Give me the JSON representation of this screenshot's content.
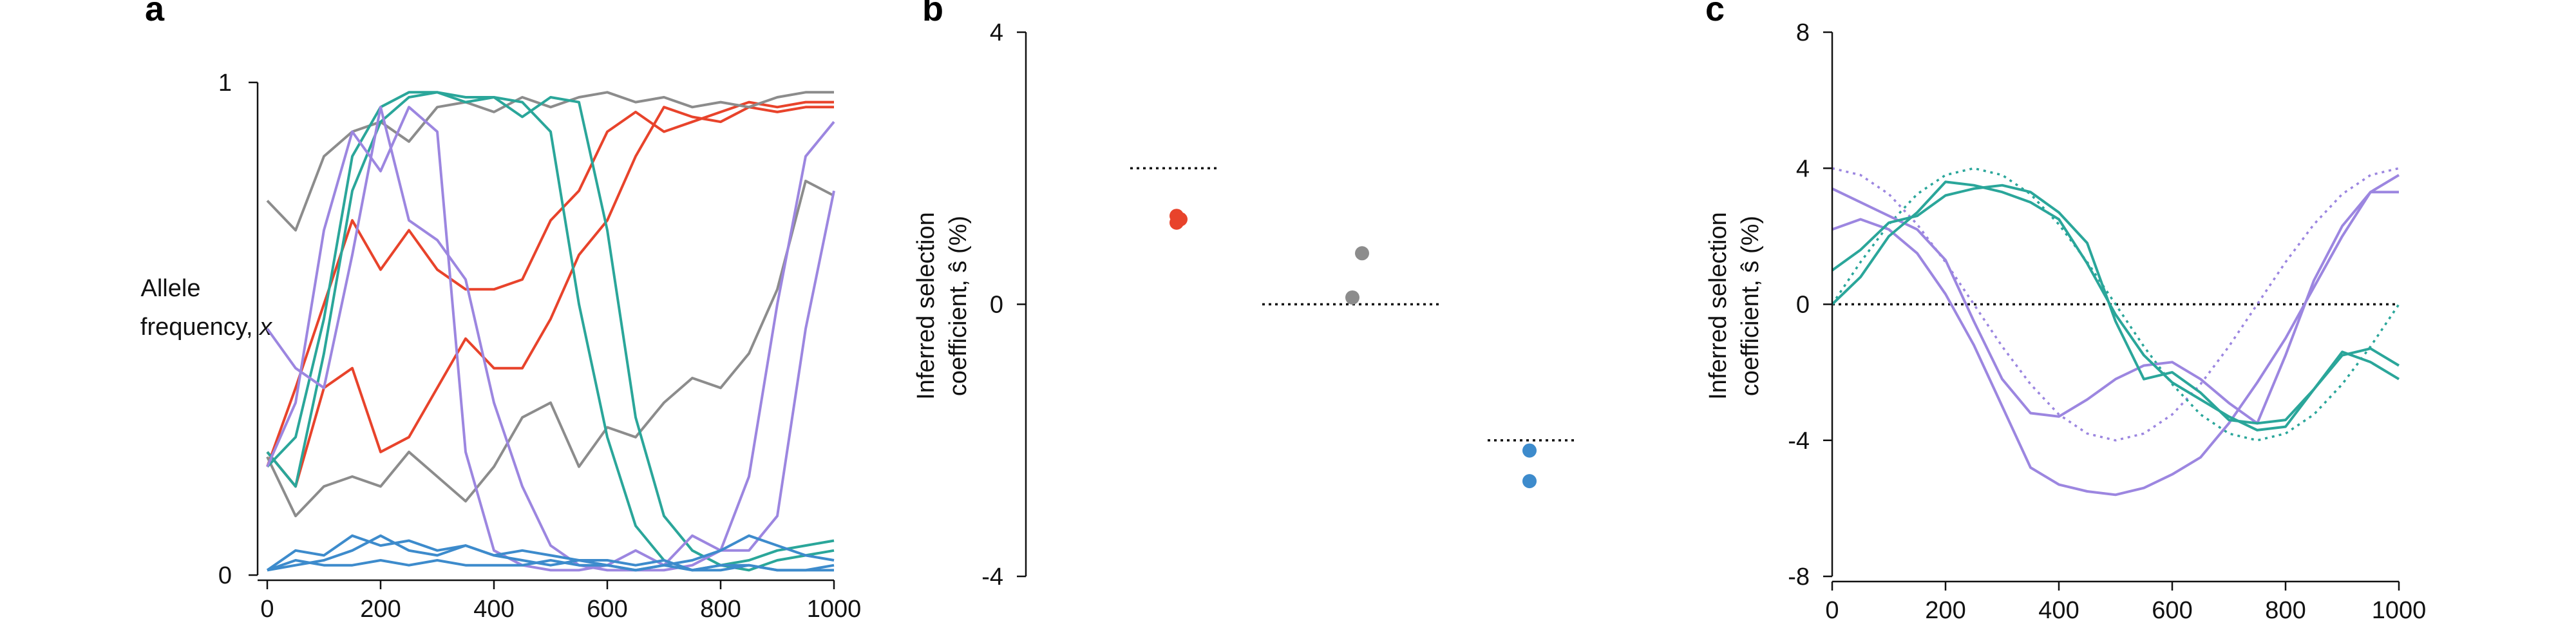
{
  "panels": {
    "a": {
      "letter": "a",
      "ylabel_line1": "Allele",
      "ylabel_line2_prefix": "frequency, ",
      "ylabel_var": "x"
    },
    "b": {
      "letter": "b",
      "ylabel_line1": "Inferred selection",
      "ylabel_line2": "coefficient, ŝ (%)"
    },
    "c": {
      "letter": "c",
      "ylabel_line1": "Inferred selection",
      "ylabel_line2": "coefficient, ŝ (%)"
    }
  },
  "colors": {
    "red": "#e8432b",
    "gray": "#8c8c8c",
    "teal": "#2aa69a",
    "purple": "#9c86e0",
    "blue": "#3d8bcc",
    "dotted": "#111111"
  },
  "chart_data": [
    {
      "id": "a",
      "type": "line",
      "xlim": [
        0,
        1000
      ],
      "ylim": [
        0,
        1
      ],
      "xticks": [
        "0",
        "200",
        "400",
        "600",
        "800",
        "1000"
      ],
      "yticks": [
        "0",
        "1"
      ],
      "ylabel": "Allele frequency, x",
      "series": [
        {
          "color": "red",
          "x": [
            0,
            50,
            100,
            150,
            200,
            250,
            300,
            350,
            400,
            450,
            500,
            550,
            600,
            650,
            700,
            750,
            800,
            850,
            900,
            950,
            1000
          ],
          "y": [
            0.25,
            0.18,
            0.38,
            0.42,
            0.25,
            0.28,
            0.38,
            0.48,
            0.42,
            0.42,
            0.52,
            0.65,
            0.72,
            0.85,
            0.95,
            0.93,
            0.92,
            0.95,
            0.94,
            0.95,
            0.95
          ]
        },
        {
          "color": "red",
          "x": [
            0,
            50,
            100,
            150,
            200,
            250,
            300,
            350,
            400,
            450,
            500,
            550,
            600,
            650,
            700,
            750,
            800,
            850,
            900,
            950,
            1000
          ],
          "y": [
            0.22,
            0.38,
            0.55,
            0.72,
            0.62,
            0.7,
            0.62,
            0.58,
            0.58,
            0.6,
            0.72,
            0.78,
            0.9,
            0.94,
            0.9,
            0.92,
            0.94,
            0.96,
            0.95,
            0.96,
            0.96
          ]
        },
        {
          "color": "gray",
          "x": [
            0,
            50,
            100,
            150,
            200,
            250,
            300,
            350,
            400,
            450,
            500,
            550,
            600,
            650,
            700,
            750,
            800,
            850,
            900,
            950,
            1000
          ],
          "y": [
            0.76,
            0.7,
            0.85,
            0.9,
            0.92,
            0.88,
            0.95,
            0.96,
            0.94,
            0.97,
            0.95,
            0.97,
            0.98,
            0.96,
            0.97,
            0.95,
            0.96,
            0.95,
            0.97,
            0.98,
            0.98
          ]
        },
        {
          "color": "gray",
          "x": [
            0,
            50,
            100,
            150,
            200,
            250,
            300,
            350,
            400,
            450,
            500,
            550,
            600,
            650,
            700,
            750,
            800,
            850,
            900,
            950,
            1000
          ],
          "y": [
            0.24,
            0.12,
            0.18,
            0.2,
            0.18,
            0.25,
            0.2,
            0.15,
            0.22,
            0.32,
            0.35,
            0.22,
            0.3,
            0.28,
            0.35,
            0.4,
            0.38,
            0.45,
            0.58,
            0.8,
            0.77
          ]
        },
        {
          "color": "teal",
          "x": [
            0,
            50,
            100,
            150,
            200,
            250,
            300,
            350,
            400,
            450,
            500,
            550,
            600,
            650,
            700,
            750,
            800,
            850,
            900,
            950,
            1000
          ],
          "y": [
            0.25,
            0.18,
            0.45,
            0.78,
            0.92,
            0.97,
            0.98,
            0.97,
            0.97,
            0.96,
            0.9,
            0.55,
            0.28,
            0.1,
            0.03,
            0.01,
            0.02,
            0.03,
            0.05,
            0.06,
            0.07
          ]
        },
        {
          "color": "teal",
          "x": [
            0,
            50,
            100,
            150,
            200,
            250,
            300,
            350,
            400,
            450,
            500,
            550,
            600,
            650,
            700,
            750,
            800,
            850,
            900,
            950,
            1000
          ],
          "y": [
            0.22,
            0.28,
            0.52,
            0.85,
            0.95,
            0.98,
            0.98,
            0.96,
            0.97,
            0.93,
            0.97,
            0.96,
            0.7,
            0.32,
            0.12,
            0.05,
            0.02,
            0.01,
            0.03,
            0.04,
            0.05
          ]
        },
        {
          "color": "purple",
          "x": [
            0,
            50,
            100,
            150,
            200,
            250,
            300,
            350,
            400,
            450,
            500,
            550,
            600,
            650,
            700,
            750,
            800,
            850,
            900,
            950,
            1000
          ],
          "y": [
            0.5,
            0.42,
            0.38,
            0.65,
            0.95,
            0.72,
            0.68,
            0.6,
            0.35,
            0.18,
            0.06,
            0.02,
            0.01,
            0.01,
            0.01,
            0.02,
            0.05,
            0.2,
            0.55,
            0.85,
            0.92
          ]
        },
        {
          "color": "purple",
          "x": [
            0,
            50,
            100,
            150,
            200,
            250,
            300,
            350,
            400,
            450,
            500,
            550,
            600,
            650,
            700,
            750,
            800,
            850,
            900,
            950,
            1000
          ],
          "y": [
            0.22,
            0.35,
            0.7,
            0.9,
            0.82,
            0.95,
            0.9,
            0.25,
            0.05,
            0.02,
            0.01,
            0.01,
            0.02,
            0.05,
            0.02,
            0.08,
            0.05,
            0.05,
            0.12,
            0.5,
            0.78
          ]
        },
        {
          "color": "blue",
          "x": [
            0,
            50,
            100,
            150,
            200,
            250,
            300,
            350,
            400,
            450,
            500,
            550,
            600,
            650,
            700,
            750,
            800,
            850,
            900,
            950,
            1000
          ],
          "y": [
            0.01,
            0.05,
            0.04,
            0.08,
            0.06,
            0.07,
            0.05,
            0.06,
            0.04,
            0.05,
            0.04,
            0.03,
            0.03,
            0.02,
            0.03,
            0.01,
            0.02,
            0.02,
            0.01,
            0.01,
            0.01
          ]
        },
        {
          "color": "blue",
          "x": [
            0,
            50,
            100,
            150,
            200,
            250,
            300,
            350,
            400,
            450,
            500,
            550,
            600,
            650,
            700,
            750,
            800,
            850,
            900,
            950,
            1000
          ],
          "y": [
            0.01,
            0.02,
            0.03,
            0.05,
            0.08,
            0.05,
            0.04,
            0.06,
            0.04,
            0.03,
            0.02,
            0.03,
            0.02,
            0.01,
            0.02,
            0.01,
            0.01,
            0.02,
            0.01,
            0.01,
            0.02
          ]
        },
        {
          "color": "blue",
          "x": [
            0,
            50,
            100,
            150,
            200,
            250,
            300,
            350,
            400,
            450,
            500,
            550,
            600,
            650,
            700,
            750,
            800,
            850,
            900,
            950,
            1000
          ],
          "y": [
            0.01,
            0.03,
            0.02,
            0.02,
            0.03,
            0.02,
            0.03,
            0.02,
            0.02,
            0.02,
            0.03,
            0.02,
            0.02,
            0.01,
            0.02,
            0.03,
            0.05,
            0.08,
            0.06,
            0.04,
            0.03
          ]
        }
      ]
    },
    {
      "id": "b",
      "type": "scatter",
      "ylim": [
        -4,
        4
      ],
      "yticks": [
        "-4",
        "0",
        "4"
      ],
      "ylabel": "Inferred selection coefficient, ŝ (%)",
      "groups": [
        {
          "color": "red",
          "true_value": 2,
          "points": [
            1.3,
            1.25,
            1.2
          ]
        },
        {
          "color": "gray",
          "true_value": 0,
          "points": [
            0.75,
            0.1
          ]
        },
        {
          "color": "blue",
          "true_value": -2,
          "points": [
            -2.15,
            -2.6
          ]
        }
      ]
    },
    {
      "id": "c",
      "type": "line",
      "xlim": [
        0,
        1000
      ],
      "ylim": [
        -8,
        8
      ],
      "xticks": [
        "0",
        "200",
        "400",
        "600",
        "800",
        "1000"
      ],
      "yticks": [
        "-8",
        "-4",
        "0",
        "4",
        "8"
      ],
      "ylabel": "Inferred selection coefficient, ŝ (%)",
      "series": [
        {
          "color": "purple",
          "dotted": true,
          "x": [
            0,
            50,
            100,
            150,
            200,
            250,
            300,
            350,
            400,
            450,
            500,
            550,
            600,
            650,
            700,
            750,
            800,
            850,
            900,
            950,
            1000
          ],
          "y": [
            4,
            3.8,
            3.24,
            2.35,
            1.24,
            0,
            -1.24,
            -2.35,
            -3.24,
            -3.8,
            -4,
            -3.8,
            -3.24,
            -2.35,
            -1.24,
            0,
            1.24,
            2.35,
            3.24,
            3.8,
            4
          ]
        },
        {
          "color": "teal",
          "dotted": true,
          "x": [
            0,
            50,
            100,
            150,
            200,
            250,
            300,
            350,
            400,
            450,
            500,
            550,
            600,
            650,
            700,
            750,
            800,
            850,
            900,
            950,
            1000
          ],
          "y": [
            0,
            1.24,
            2.35,
            3.24,
            3.8,
            4,
            3.8,
            3.24,
            2.35,
            1.24,
            0,
            -1.24,
            -2.35,
            -3.24,
            -3.8,
            -4,
            -3.8,
            -3.24,
            -2.35,
            -1.24,
            0
          ]
        },
        {
          "color": "purple",
          "x": [
            0,
            50,
            100,
            150,
            200,
            250,
            300,
            350,
            400,
            450,
            500,
            550,
            600,
            650,
            700,
            750,
            800,
            850,
            900,
            950,
            1000
          ],
          "y": [
            3.4,
            3,
            2.6,
            2.2,
            1.3,
            -0.5,
            -2.2,
            -3.2,
            -3.3,
            -2.8,
            -2.2,
            -1.8,
            -1.7,
            -2.2,
            -2.9,
            -3.5,
            -1.5,
            0.7,
            2.3,
            3.3,
            3.3
          ]
        },
        {
          "color": "purple",
          "x": [
            0,
            50,
            100,
            150,
            200,
            250,
            300,
            350,
            400,
            450,
            500,
            550,
            600,
            650,
            700,
            750,
            800,
            850,
            900,
            950,
            1000
          ],
          "y": [
            2.2,
            2.5,
            2.2,
            1.5,
            0.3,
            -1.2,
            -3,
            -4.8,
            -5.3,
            -5.5,
            -5.6,
            -5.4,
            -5,
            -4.5,
            -3.5,
            -2.3,
            -1,
            0.5,
            2,
            3.3,
            3.8
          ]
        },
        {
          "color": "teal",
          "x": [
            0,
            50,
            100,
            150,
            200,
            250,
            300,
            350,
            400,
            450,
            500,
            550,
            600,
            650,
            700,
            750,
            800,
            850,
            900,
            950,
            1000
          ],
          "y": [
            0,
            0.8,
            2,
            2.7,
            3.6,
            3.5,
            3.3,
            3,
            2.5,
            1.2,
            -0.3,
            -1.5,
            -2.3,
            -2.8,
            -3.3,
            -3.7,
            -3.6,
            -2.5,
            -1.4,
            -1.7,
            -2.2
          ]
        },
        {
          "color": "teal",
          "x": [
            0,
            50,
            100,
            150,
            200,
            250,
            300,
            350,
            400,
            450,
            500,
            550,
            600,
            650,
            700,
            750,
            800,
            850,
            900,
            950,
            1000
          ],
          "y": [
            1,
            1.6,
            2.4,
            2.6,
            3.2,
            3.4,
            3.5,
            3.3,
            2.7,
            1.8,
            -0.5,
            -2.2,
            -2,
            -2.6,
            -3.4,
            -3.5,
            -3.4,
            -2.5,
            -1.5,
            -1.3,
            -1.8
          ]
        }
      ]
    }
  ]
}
